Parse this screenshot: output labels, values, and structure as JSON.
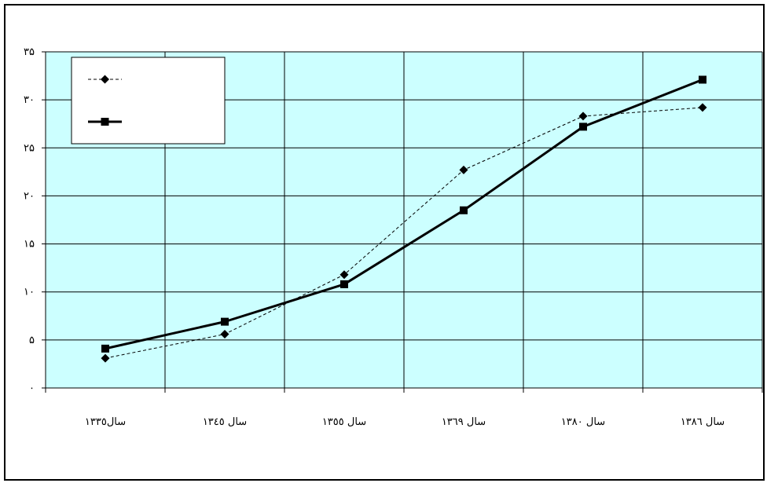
{
  "chart_data": {
    "type": "line",
    "categories": [
      "سال١٣٣٥",
      "سال ١٣٤٥",
      "سال ١٣٥٥",
      "سال ١٣٦٩",
      "سال ١٣٨٠",
      "سال ١٣٨٦"
    ],
    "ylim": [
      0,
      35
    ],
    "yticks": [
      0,
      5,
      10,
      15,
      20,
      25,
      30,
      35
    ],
    "ytick_labels": [
      "٠",
      "۵",
      "١٠",
      "١۵",
      "٢٠",
      "٢۵",
      "٣٠",
      "٣۵"
    ],
    "grid": true,
    "legend_position": "top-left",
    "plot_background": "#ccffff",
    "series": [
      {
        "marker": "diamond",
        "style": "dashed",
        "color": "#000000",
        "values": [
          3.1,
          5.6,
          11.8,
          22.7,
          28.3,
          29.2
        ]
      },
      {
        "marker": "square",
        "style": "solid",
        "color": "#000000",
        "values": [
          4.1,
          6.9,
          10.8,
          18.5,
          27.2,
          32.1
        ]
      }
    ]
  }
}
